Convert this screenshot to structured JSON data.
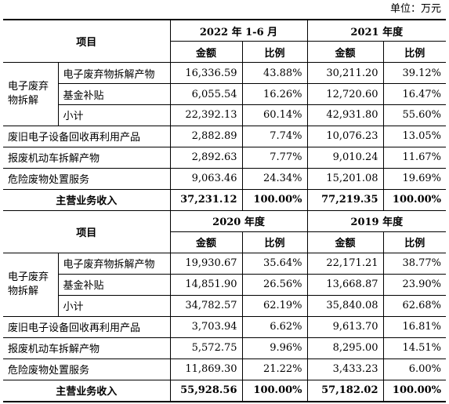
{
  "unit_label": "单位：万元",
  "item_header": "项目",
  "amount_header": "金额",
  "ratio_header": "比例",
  "group_label_line1": "电子废弃",
  "group_label_line2": "物拆解",
  "sections": [
    {
      "periods": [
        "2022 年 1-6 月",
        "2021 年度"
      ],
      "sub_rows": [
        {
          "label": "电子废弃物拆解产物",
          "v": [
            "16,336.59",
            "43.88%",
            "30,211.20",
            "39.12%"
          ]
        },
        {
          "label": "基金补贴",
          "v": [
            "6,055.54",
            "16.26%",
            "12,720.60",
            "16.47%"
          ]
        },
        {
          "label": "小计",
          "v": [
            "22,392.13",
            "60.14%",
            "42,931.80",
            "55.60%"
          ]
        }
      ],
      "rows": [
        {
          "label": "废旧电子设备回收再利用产品",
          "v": [
            "2,882.89",
            "7.74%",
            "10,076.23",
            "13.05%"
          ]
        },
        {
          "label": "报废机动车拆解产物",
          "v": [
            "2,892.63",
            "7.77%",
            "9,010.24",
            "11.67%"
          ]
        },
        {
          "label": "危险废物处置服务",
          "v": [
            "9,063.46",
            "24.34%",
            "15,201.08",
            "19.69%"
          ]
        }
      ],
      "total": {
        "label": "主营业务收入",
        "v": [
          "37,231.12",
          "100.00%",
          "77,219.35",
          "100.00%"
        ]
      }
    },
    {
      "periods": [
        "2020 年度",
        "2019 年度"
      ],
      "sub_rows": [
        {
          "label": "电子废弃物拆解产物",
          "v": [
            "19,930.67",
            "35.64%",
            "22,171.21",
            "38.77%"
          ]
        },
        {
          "label": "基金补贴",
          "v": [
            "14,851.90",
            "26.56%",
            "13,668.87",
            "23.90%"
          ]
        },
        {
          "label": "小计",
          "v": [
            "34,782.57",
            "62.19%",
            "35,840.08",
            "62.68%"
          ]
        }
      ],
      "rows": [
        {
          "label": "废旧电子设备回收再利用产品",
          "v": [
            "3,703.94",
            "6.62%",
            "9,613.70",
            "16.81%"
          ]
        },
        {
          "label": "报废机动车拆解产物",
          "v": [
            "5,572.75",
            "9.96%",
            "8,295.00",
            "14.51%"
          ]
        },
        {
          "label": "危险废物处置服务",
          "v": [
            "11,869.30",
            "21.22%",
            "3,433.23",
            "6.00%"
          ]
        }
      ],
      "total": {
        "label": "主营业务收入",
        "v": [
          "55,928.56",
          "100.00%",
          "57,182.02",
          "100.00%"
        ]
      }
    }
  ]
}
